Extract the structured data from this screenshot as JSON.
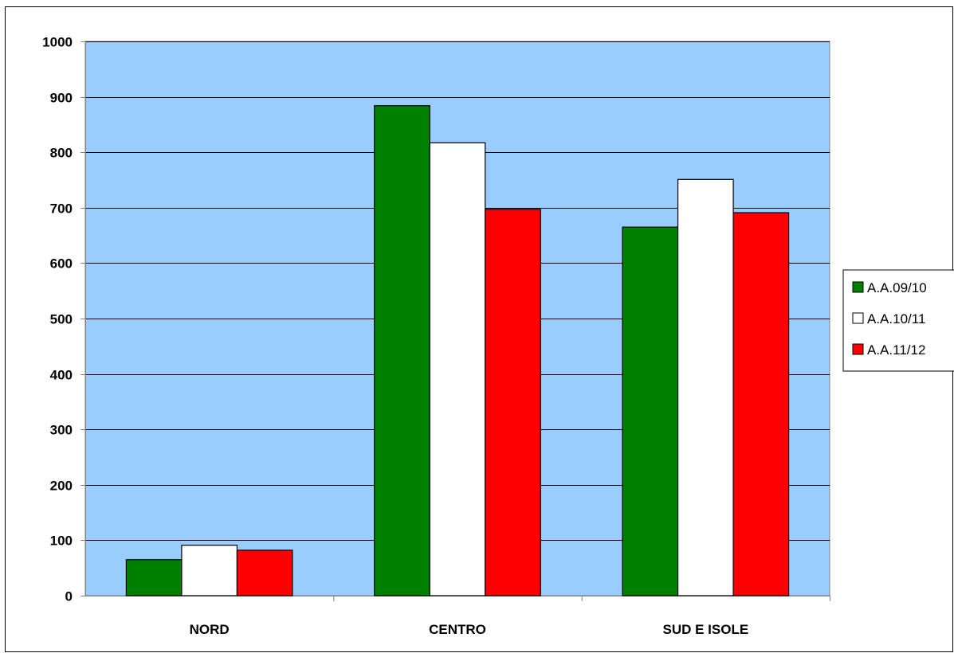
{
  "chart_data": {
    "type": "bar",
    "categories": [
      "NORD",
      "CENTRO",
      "SUD E ISOLE"
    ],
    "series": [
      {
        "name": "A.A.09/10",
        "values": [
          65,
          884,
          665
        ],
        "color": "#008000"
      },
      {
        "name": "A.A.10/11",
        "values": [
          91,
          817,
          751
        ],
        "color": "#ffffff"
      },
      {
        "name": "A.A.11/12",
        "values": [
          82,
          697,
          691
        ],
        "color": "#ff0000"
      }
    ],
    "title": "",
    "xlabel": "",
    "ylabel": "",
    "ylim": [
      0,
      1000
    ],
    "yticks": [
      0,
      100,
      200,
      300,
      400,
      500,
      600,
      700,
      800,
      900,
      1000
    ],
    "grid": true,
    "legend": "right",
    "plot_background": "#99ccff"
  }
}
